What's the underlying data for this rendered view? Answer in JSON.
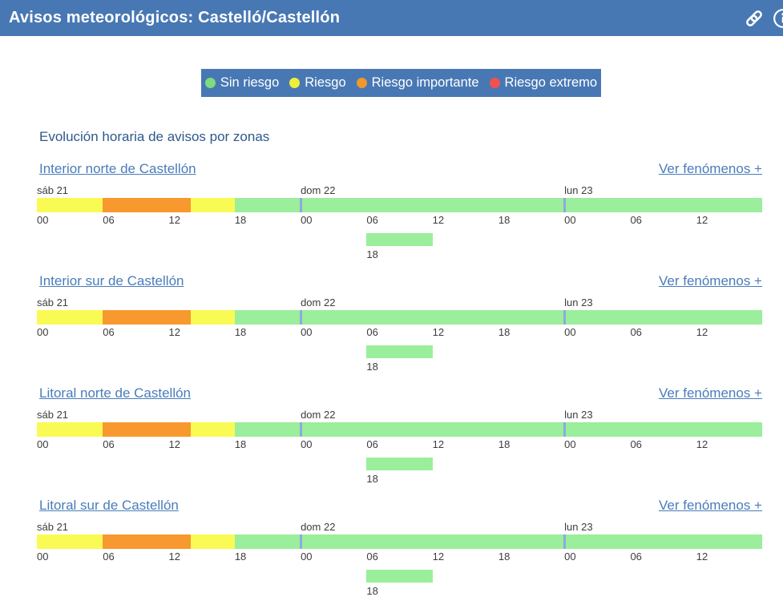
{
  "header": {
    "title": "Avisos meteorológicos: Castelló/Castellón"
  },
  "legend": {
    "items": [
      {
        "label": "Sin riesgo",
        "color": "#7ddc7d"
      },
      {
        "label": "Riesgo",
        "color": "#efef3a"
      },
      {
        "label": "Riesgo importante",
        "color": "#f2962e"
      },
      {
        "label": "Riesgo extremo",
        "color": "#f25151"
      }
    ],
    "background": "#4878b4"
  },
  "section_title": "Evolución horaria de avisos por zonas",
  "risk_color_by_name": {
    "Sin riesgo": "#9bee9b",
    "Riesgo": "#fafa55",
    "Riesgo importante": "#f8992f",
    "Riesgo extremo": "#f25151"
  },
  "timeline": {
    "total_hours": 66,
    "day_labels": [
      {
        "label": "sáb 21",
        "hour": 0
      },
      {
        "label": "dom 22",
        "hour": 24
      },
      {
        "label": "lun 23",
        "hour": 48
      }
    ],
    "ticks": [
      {
        "label": "00",
        "hour": 0
      },
      {
        "label": "06",
        "hour": 6
      },
      {
        "label": "12",
        "hour": 12
      },
      {
        "label": "18",
        "hour": 18
      },
      {
        "label": "00",
        "hour": 24
      },
      {
        "label": "06",
        "hour": 30
      },
      {
        "label": "12",
        "hour": 36
      },
      {
        "label": "18",
        "hour": 42
      },
      {
        "label": "00",
        "hour": 48
      },
      {
        "label": "06",
        "hour": 54
      },
      {
        "label": "12",
        "hour": 60
      }
    ],
    "day_separator_hours": [
      24,
      48
    ],
    "separator_color": "#90a8e2"
  },
  "zones": [
    {
      "name": "Interior norte de Castellón",
      "phenomena_link": "Ver fenómenos +",
      "segments": [
        {
          "from_hour": 0,
          "to_hour": 6,
          "risk": "Riesgo"
        },
        {
          "from_hour": 6,
          "to_hour": 14,
          "risk": "Riesgo importante"
        },
        {
          "from_hour": 14,
          "to_hour": 18,
          "risk": "Riesgo"
        },
        {
          "from_hour": 18,
          "to_hour": 66,
          "risk": "Sin riesgo"
        }
      ],
      "overflow": {
        "tick_label": "18",
        "duration_hours": 6,
        "risk": "Sin riesgo"
      }
    },
    {
      "name": "Interior sur de Castellón",
      "phenomena_link": "Ver fenómenos +",
      "segments": [
        {
          "from_hour": 0,
          "to_hour": 6,
          "risk": "Riesgo"
        },
        {
          "from_hour": 6,
          "to_hour": 14,
          "risk": "Riesgo importante"
        },
        {
          "from_hour": 14,
          "to_hour": 18,
          "risk": "Riesgo"
        },
        {
          "from_hour": 18,
          "to_hour": 66,
          "risk": "Sin riesgo"
        }
      ],
      "overflow": {
        "tick_label": "18",
        "duration_hours": 6,
        "risk": "Sin riesgo"
      }
    },
    {
      "name": "Litoral norte de Castellón",
      "phenomena_link": "Ver fenómenos +",
      "segments": [
        {
          "from_hour": 0,
          "to_hour": 6,
          "risk": "Riesgo"
        },
        {
          "from_hour": 6,
          "to_hour": 14,
          "risk": "Riesgo importante"
        },
        {
          "from_hour": 14,
          "to_hour": 18,
          "risk": "Riesgo"
        },
        {
          "from_hour": 18,
          "to_hour": 66,
          "risk": "Sin riesgo"
        }
      ],
      "overflow": {
        "tick_label": "18",
        "duration_hours": 6,
        "risk": "Sin riesgo"
      }
    },
    {
      "name": "Litoral sur de Castellón",
      "phenomena_link": "Ver fenómenos +",
      "segments": [
        {
          "from_hour": 0,
          "to_hour": 6,
          "risk": "Riesgo"
        },
        {
          "from_hour": 6,
          "to_hour": 14,
          "risk": "Riesgo importante"
        },
        {
          "from_hour": 14,
          "to_hour": 18,
          "risk": "Riesgo"
        },
        {
          "from_hour": 18,
          "to_hour": 66,
          "risk": "Sin riesgo"
        }
      ],
      "overflow": {
        "tick_label": "18",
        "duration_hours": 6,
        "risk": "Sin riesgo"
      }
    }
  ]
}
